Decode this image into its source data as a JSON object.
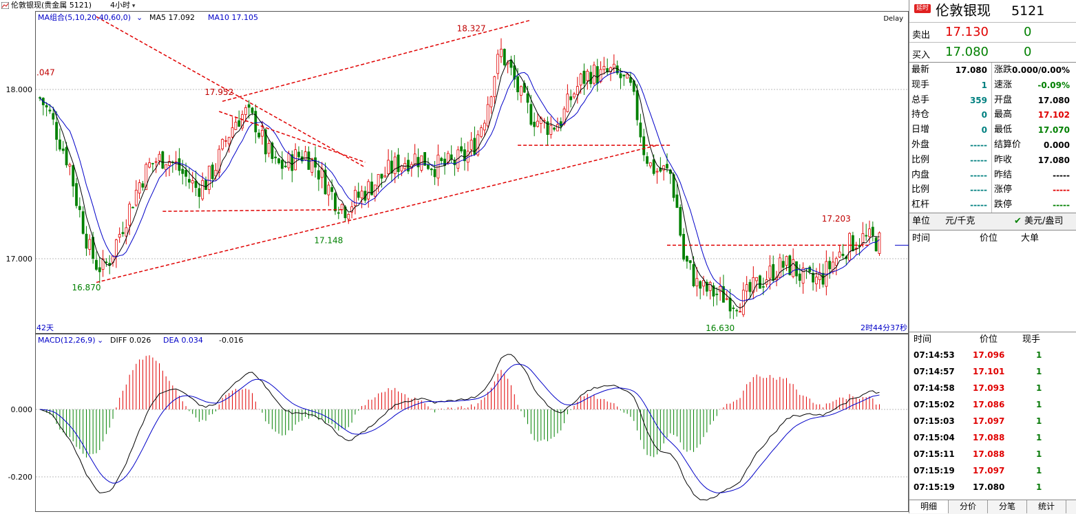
{
  "window": {
    "title": "伦敦银现(贵金属 5121)",
    "period": "4小时"
  },
  "chart": {
    "ma_legend": {
      "label": "MA组合(5,10,20,40,60,0)",
      "ma5": "MA5 17.092",
      "ma10": "MA10 17.105"
    },
    "delay_label": "Delay",
    "y_ticks": [
      "18.000",
      "17.000"
    ],
    "left_cut_label": ".047",
    "annotations": [
      "18.327",
      "17.952",
      "17.148",
      "16.870",
      "16.630",
      "17.203"
    ],
    "bottom_left": "42天",
    "countdown": "2时44分37秒",
    "macd_legend": {
      "label": "MACD(12,26,9)",
      "diff": "DIFF 0.026",
      "dea": "DEA 0.034",
      "macd": "-0.016"
    },
    "macd_ticks": [
      "0.000",
      "-0.200"
    ],
    "colors": {
      "up": "#e00000",
      "down": "#008000",
      "ma5": "#000000",
      "ma10": "#0000c8",
      "trend": "#e00000"
    }
  },
  "chart_data": {
    "type": "candlestick",
    "symbol": "伦敦银现",
    "period": "4小时",
    "y_ticks": [
      18.0,
      17.0
    ],
    "labeled_points": {
      "high_1": 18.327,
      "high_2": 17.952,
      "low_1": 16.87,
      "low_2": 17.148,
      "low_3": 16.63,
      "high_3": 17.203
    },
    "ma": {
      "ma5": 17.092,
      "ma10": 17.105
    },
    "path": [
      [
        0,
        17.95
      ],
      [
        3,
        17.85
      ],
      [
        6,
        17.7
      ],
      [
        9,
        17.55
      ],
      [
        11,
        17.35
      ],
      [
        13,
        17.2
      ],
      [
        15,
        17.05
      ],
      [
        17,
        16.97
      ],
      [
        19,
        16.94
      ],
      [
        21,
        17.0
      ],
      [
        23,
        17.1
      ],
      [
        25,
        17.2
      ],
      [
        27,
        17.3
      ],
      [
        30,
        17.45
      ],
      [
        33,
        17.55
      ],
      [
        35,
        17.58
      ],
      [
        38,
        17.6
      ],
      [
        41,
        17.55
      ],
      [
        44,
        17.48
      ],
      [
        47,
        17.42
      ],
      [
        50,
        17.45
      ],
      [
        53,
        17.55
      ],
      [
        56,
        17.7
      ],
      [
        59,
        17.82
      ],
      [
        62,
        17.86
      ],
      [
        65,
        17.8
      ],
      [
        68,
        17.65
      ],
      [
        71,
        17.55
      ],
      [
        74,
        17.55
      ],
      [
        77,
        17.6
      ],
      [
        80,
        17.62
      ],
      [
        83,
        17.55
      ],
      [
        86,
        17.45
      ],
      [
        89,
        17.35
      ],
      [
        92,
        17.3
      ],
      [
        95,
        17.35
      ],
      [
        98,
        17.4
      ],
      [
        101,
        17.45
      ],
      [
        104,
        17.5
      ],
      [
        107,
        17.55
      ],
      [
        110,
        17.58
      ],
      [
        113,
        17.6
      ],
      [
        116,
        17.58
      ],
      [
        119,
        17.55
      ],
      [
        122,
        17.55
      ],
      [
        125,
        17.57
      ],
      [
        128,
        17.6
      ],
      [
        131,
        17.68
      ],
      [
        134,
        17.85
      ],
      [
        137,
        18.1
      ],
      [
        139,
        18.22
      ],
      [
        142,
        18.1
      ],
      [
        145,
        17.95
      ],
      [
        148,
        17.85
      ],
      [
        151,
        17.8
      ],
      [
        154,
        17.78
      ],
      [
        157,
        17.82
      ],
      [
        160,
        17.95
      ],
      [
        163,
        18.05
      ],
      [
        166,
        18.1
      ],
      [
        169,
        18.08
      ],
      [
        172,
        18.1
      ],
      [
        175,
        18.07
      ],
      [
        178,
        18.0
      ],
      [
        180,
        17.85
      ],
      [
        182,
        17.65
      ],
      [
        184,
        17.55
      ],
      [
        186,
        17.52
      ],
      [
        188,
        17.52
      ],
      [
        190,
        17.5
      ],
      [
        192,
        17.3
      ],
      [
        194,
        17.0
      ],
      [
        196,
        16.93
      ],
      [
        198,
        16.85
      ],
      [
        200,
        16.82
      ],
      [
        203,
        16.8
      ],
      [
        206,
        16.78
      ],
      [
        209,
        16.75
      ],
      [
        212,
        16.76
      ],
      [
        215,
        16.82
      ],
      [
        218,
        16.88
      ],
      [
        221,
        16.93
      ],
      [
        224,
        16.96
      ],
      [
        227,
        16.95
      ],
      [
        230,
        16.88
      ],
      [
        233,
        16.86
      ],
      [
        236,
        16.9
      ],
      [
        239,
        16.98
      ],
      [
        242,
        17.05
      ],
      [
        245,
        17.1
      ],
      [
        248,
        17.12
      ],
      [
        251,
        17.11
      ],
      [
        253,
        17.1
      ]
    ],
    "macd": {
      "diff": 0.026,
      "dea": 0.034,
      "macd": -0.016
    },
    "macd_y_ticks": [
      0.0,
      -0.2
    ]
  },
  "panel": {
    "live_badge": "延时",
    "name": "伦敦银现",
    "code": "5121",
    "ask": {
      "label": "卖出",
      "price": "17.130",
      "volume": "0"
    },
    "bid": {
      "label": "买入",
      "price": "17.080",
      "volume": "0"
    },
    "stats_left": [
      {
        "k": "最新",
        "v": "17.080",
        "c": "#000000"
      },
      {
        "k": "现手",
        "v": "1",
        "c": "#008080"
      },
      {
        "k": "总手",
        "v": "359",
        "c": "#008080"
      },
      {
        "k": "持仓",
        "v": "0",
        "c": "#008080"
      },
      {
        "k": "日增",
        "v": "0",
        "c": "#008080"
      },
      {
        "k": "外盘",
        "v": "-----",
        "c": "#008080"
      },
      {
        "k": "比例",
        "v": "-----",
        "c": "#008080"
      },
      {
        "k": "内盘",
        "v": "-----",
        "c": "#008080"
      },
      {
        "k": "比例",
        "v": "-----",
        "c": "#008080"
      },
      {
        "k": "杠杆",
        "v": "-----",
        "c": "#008080"
      }
    ],
    "stats_right": [
      {
        "k": "涨跌",
        "v": "0.000/0.00%",
        "c": "#000000"
      },
      {
        "k": "速涨",
        "v": "-0.09%",
        "c": "#008000"
      },
      {
        "k": "开盘",
        "v": "17.080",
        "c": "#000000"
      },
      {
        "k": "最高",
        "v": "17.102",
        "c": "#e00000"
      },
      {
        "k": "最低",
        "v": "17.070",
        "c": "#008000"
      },
      {
        "k": "结算价",
        "v": "0.000",
        "c": "#000000"
      },
      {
        "k": "昨收",
        "v": "17.080",
        "c": "#000000"
      },
      {
        "k": "昨结",
        "v": "-----",
        "c": "#000000"
      },
      {
        "k": "涨停",
        "v": "-----",
        "c": "#e00000"
      },
      {
        "k": "跌停",
        "v": "-----",
        "c": "#008000"
      }
    ],
    "unit": {
      "label": "单位",
      "value": "元/千克",
      "toggle": "美元/盎司"
    },
    "tick_head": {
      "time": "时间",
      "price": "价位",
      "big": "大单"
    },
    "trade_head": {
      "time": "时间",
      "price": "价位",
      "qty": "现手"
    },
    "trades": [
      {
        "t": "07:14:53",
        "p": "17.096",
        "q": "1",
        "c": "#e00000"
      },
      {
        "t": "07:14:57",
        "p": "17.101",
        "q": "1",
        "c": "#e00000"
      },
      {
        "t": "07:14:58",
        "p": "17.093",
        "q": "1",
        "c": "#e00000"
      },
      {
        "t": "07:15:02",
        "p": "17.086",
        "q": "1",
        "c": "#e00000"
      },
      {
        "t": "07:15:03",
        "p": "17.097",
        "q": "1",
        "c": "#e00000"
      },
      {
        "t": "07:15:04",
        "p": "17.088",
        "q": "1",
        "c": "#e00000"
      },
      {
        "t": "07:15:11",
        "p": "17.088",
        "q": "1",
        "c": "#e00000"
      },
      {
        "t": "07:15:19",
        "p": "17.097",
        "q": "1",
        "c": "#e00000"
      },
      {
        "t": "07:15:19",
        "p": "17.080",
        "q": "1",
        "c": "#000000"
      }
    ],
    "tabs": [
      "明细",
      "分价",
      "分笔",
      "统计"
    ]
  }
}
